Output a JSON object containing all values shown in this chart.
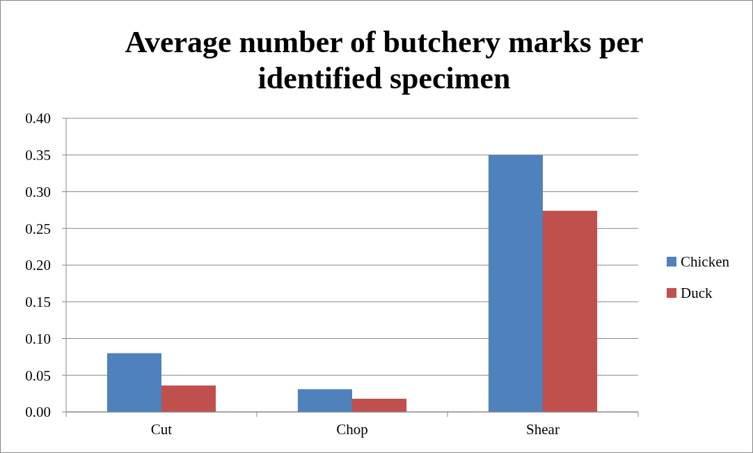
{
  "chart_data": {
    "type": "bar",
    "title": "Average number of butchery marks per identified specimen",
    "categories": [
      "Cut",
      "Chop",
      "Shear"
    ],
    "series": [
      {
        "name": "Chicken",
        "color": "#4f81bd",
        "values": [
          0.08,
          0.031,
          0.35
        ]
      },
      {
        "name": "Duck",
        "color": "#c0504d",
        "values": [
          0.036,
          0.018,
          0.274
        ]
      }
    ],
    "ylim": [
      0,
      0.4
    ],
    "yticks": [
      {
        "value": 0,
        "label": "0.00"
      },
      {
        "value": 0.05,
        "label": "0.05"
      },
      {
        "value": 0.1,
        "label": "0.10"
      },
      {
        "value": 0.15,
        "label": "0.15"
      },
      {
        "value": 0.2,
        "label": "0.20"
      },
      {
        "value": 0.25,
        "label": "0.25"
      },
      {
        "value": 0.3,
        "label": "0.30"
      },
      {
        "value": 0.35,
        "label": "0.35"
      },
      {
        "value": 0.4,
        "label": "0.40"
      }
    ],
    "grid": "y",
    "legend": "right"
  }
}
